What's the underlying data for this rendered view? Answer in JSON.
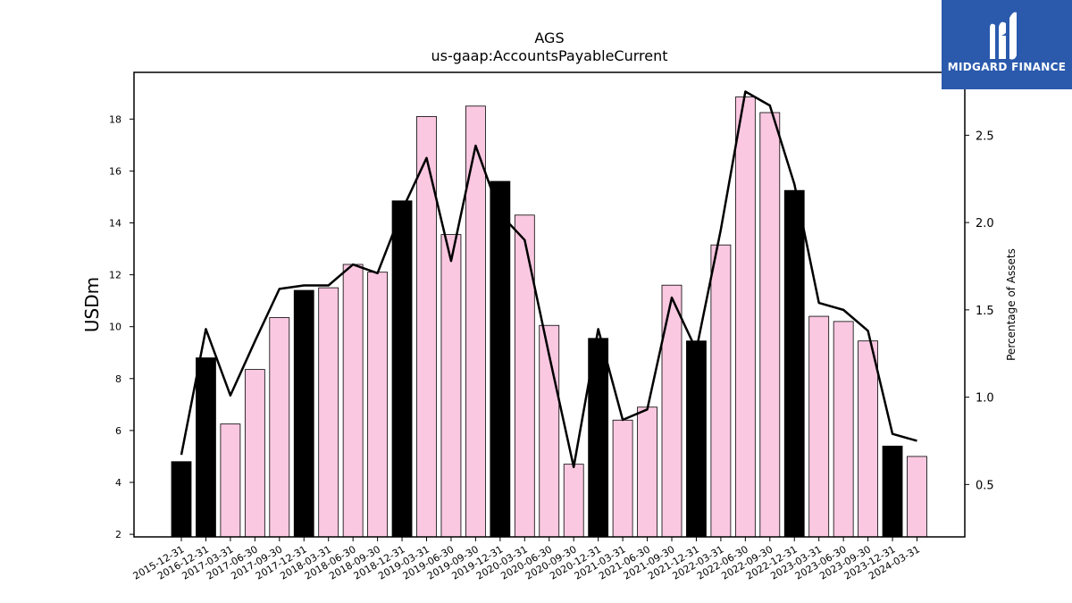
{
  "logo": {
    "text": "MIDGARD FINANCE",
    "background": "#2b5aad"
  },
  "chart_data": {
    "type": "bar",
    "title": "AGS",
    "subtitle": "us-gaap:AccountsPayableCurrent",
    "ylabel": "USDm",
    "y2label": "Percentage of Assets",
    "ylim": [
      1.9,
      19.8
    ],
    "y2lim": [
      0.2,
      2.86
    ],
    "yticks": [
      2,
      4,
      6,
      8,
      10,
      12,
      14,
      16,
      18
    ],
    "y2ticks": [
      0.5,
      1.0,
      1.5,
      2.0,
      2.5
    ],
    "ytick_labels": [
      "2",
      "4",
      "6",
      "8",
      "10",
      "12",
      "14",
      "16",
      "18"
    ],
    "y2tick_labels": [
      "0.5",
      "1.0",
      "1.5",
      "2.0",
      "2.5"
    ],
    "colors": {
      "annual": "#000000",
      "quarter": "#fbc8e1",
      "line": "#000000"
    },
    "categories": [
      "2015-12-31",
      "2016-12-31",
      "2017-03-31",
      "2017-06-30",
      "2017-09-30",
      "2017-12-31",
      "2018-03-31",
      "2018-06-30",
      "2018-09-30",
      "2018-12-31",
      "2019-03-31",
      "2019-06-30",
      "2019-09-30",
      "2019-12-31",
      "2020-03-31",
      "2020-06-30",
      "2020-09-30",
      "2020-12-31",
      "2021-03-31",
      "2021-06-30",
      "2021-09-30",
      "2021-12-31",
      "2022-03-31",
      "2022-06-30",
      "2022-09-30",
      "2022-12-31",
      "2023-03-31",
      "2023-06-30",
      "2023-09-30",
      "2023-12-31",
      "2024-03-31"
    ],
    "series": [
      {
        "name": "",
        "kind": "bar",
        "axis": "left",
        "values": [
          4.8,
          8.8,
          6.25,
          8.35,
          10.35,
          11.4,
          11.5,
          12.4,
          12.1,
          14.85,
          18.1,
          13.55,
          18.5,
          15.6,
          14.3,
          10.05,
          4.7,
          9.55,
          6.4,
          6.9,
          11.6,
          9.45,
          13.15,
          18.85,
          18.25,
          15.25,
          10.4,
          10.2,
          9.45,
          5.4,
          5.0
        ],
        "annual": [
          true,
          true,
          false,
          false,
          false,
          true,
          false,
          false,
          false,
          true,
          false,
          false,
          false,
          true,
          false,
          false,
          false,
          true,
          false,
          false,
          false,
          true,
          false,
          false,
          false,
          true,
          false,
          false,
          false,
          true,
          false
        ]
      },
      {
        "name": "",
        "kind": "line",
        "axis": "right",
        "values": [
          0.67,
          1.39,
          1.01,
          1.32,
          1.62,
          1.64,
          1.64,
          1.76,
          1.71,
          2.07,
          2.37,
          1.78,
          2.44,
          2.05,
          1.9,
          1.24,
          0.6,
          1.39,
          0.87,
          0.93,
          1.57,
          1.27,
          1.96,
          2.75,
          2.67,
          2.22,
          1.54,
          1.5,
          1.38,
          0.79,
          0.75
        ]
      }
    ]
  }
}
